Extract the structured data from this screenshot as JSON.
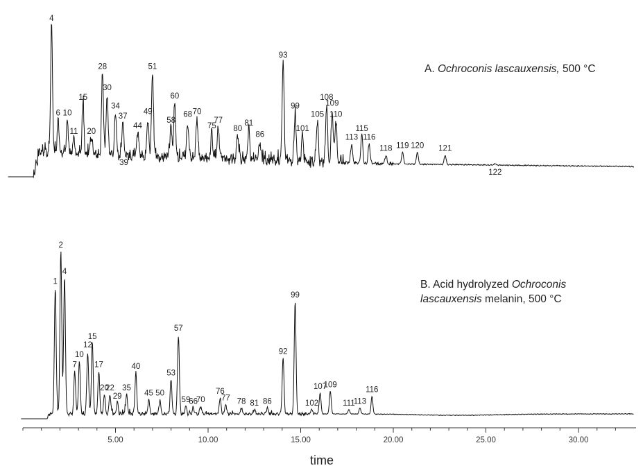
{
  "chart_data": [
    {
      "type": "line",
      "title": {
        "prefix": "A. ",
        "italic": "Ochroconis lascauxensis,",
        "suffix": " 500 °C"
      },
      "xlabel": "time",
      "xlim": [
        0,
        32.5
      ],
      "series": [
        {
          "peaks": [
            {
              "label": "4",
              "x": 1.55,
              "y": 100
            },
            {
              "label": "6",
              "x": 1.9,
              "y": 33
            },
            {
              "label": "10",
              "x": 2.4,
              "y": 33
            },
            {
              "label": "11",
              "x": 2.75,
              "y": 20
            },
            {
              "label": "15",
              "x": 3.25,
              "y": 44
            },
            {
              "label": "20",
              "x": 3.7,
              "y": 20
            },
            {
              "label": "28",
              "x": 4.3,
              "y": 66
            },
            {
              "label": "30",
              "x": 4.55,
              "y": 51
            },
            {
              "label": "34",
              "x": 5.0,
              "y": 38
            },
            {
              "label": "37",
              "x": 5.4,
              "y": 31
            },
            {
              "label": "39",
              "x": 5.45,
              "y": 4
            },
            {
              "label": "44",
              "x": 6.2,
              "y": 24
            },
            {
              "label": "49",
              "x": 6.75,
              "y": 34
            },
            {
              "label": "51",
              "x": 7.0,
              "y": 66
            },
            {
              "label": "58",
              "x": 8.0,
              "y": 28
            },
            {
              "label": "60",
              "x": 8.2,
              "y": 45
            },
            {
              "label": "68",
              "x": 8.9,
              "y": 32
            },
            {
              "label": "70",
              "x": 9.4,
              "y": 34
            },
            {
              "label": "75",
              "x": 10.2,
              "y": 24
            },
            {
              "label": "77",
              "x": 10.55,
              "y": 28
            },
            {
              "label": "80",
              "x": 11.6,
              "y": 22
            },
            {
              "label": "81",
              "x": 12.2,
              "y": 26
            },
            {
              "label": "86",
              "x": 12.8,
              "y": 18
            },
            {
              "label": "93",
              "x": 14.05,
              "y": 74
            },
            {
              "label": "99",
              "x": 14.7,
              "y": 38
            },
            {
              "label": "101",
              "x": 15.1,
              "y": 22
            },
            {
              "label": "105",
              "x": 15.9,
              "y": 32
            },
            {
              "label": "108",
              "x": 16.4,
              "y": 44
            },
            {
              "label": "109",
              "x": 16.7,
              "y": 40
            },
            {
              "label": "110",
              "x": 16.9,
              "y": 32
            },
            {
              "label": "113",
              "x": 17.75,
              "y": 16
            },
            {
              "label": "115",
              "x": 18.3,
              "y": 22
            },
            {
              "label": "116",
              "x": 18.7,
              "y": 16
            },
            {
              "label": "118",
              "x": 19.6,
              "y": 8
            },
            {
              "label": "119",
              "x": 20.5,
              "y": 10
            },
            {
              "label": "120",
              "x": 21.3,
              "y": 10
            },
            {
              "label": "121",
              "x": 22.8,
              "y": 8
            },
            {
              "label": "122",
              "x": 25.5,
              "y": 2
            }
          ]
        }
      ]
    },
    {
      "type": "line",
      "title": {
        "line1_prefix": "B. Acid hydrolyzed ",
        "line1_italic": "Ochroconis",
        "line2_italic": "lascauxensis",
        "line2_suffix": " melanin, 500 °C"
      },
      "xlabel": "time",
      "xlim": [
        0,
        32.5
      ],
      "x_ticks": [
        5,
        10,
        15,
        20,
        25,
        30
      ],
      "x_tick_labels": [
        "5.00",
        "10.00",
        "15.00",
        "20.00",
        "25.00",
        "30.00"
      ],
      "series": [
        {
          "peaks": [
            {
              "label": "1",
              "x": 1.75,
              "y": 76
            },
            {
              "label": "2",
              "x": 2.05,
              "y": 98
            },
            {
              "label": "4",
              "x": 2.25,
              "y": 82
            },
            {
              "label": "7",
              "x": 2.8,
              "y": 26
            },
            {
              "label": "10",
              "x": 3.05,
              "y": 32
            },
            {
              "label": "12",
              "x": 3.5,
              "y": 38
            },
            {
              "label": "15",
              "x": 3.75,
              "y": 43
            },
            {
              "label": "17",
              "x": 4.1,
              "y": 26
            },
            {
              "label": "20",
              "x": 4.4,
              "y": 12
            },
            {
              "label": "22",
              "x": 4.7,
              "y": 12
            },
            {
              "label": "29",
              "x": 5.1,
              "y": 7
            },
            {
              "label": "35",
              "x": 5.6,
              "y": 12
            },
            {
              "label": "40",
              "x": 6.1,
              "y": 25
            },
            {
              "label": "45",
              "x": 6.8,
              "y": 9
            },
            {
              "label": "50",
              "x": 7.4,
              "y": 9
            },
            {
              "label": "53",
              "x": 8.0,
              "y": 21
            },
            {
              "label": "57",
              "x": 8.4,
              "y": 48
            },
            {
              "label": "59",
              "x": 8.8,
              "y": 5
            },
            {
              "label": "66",
              "x": 9.2,
              "y": 4
            },
            {
              "label": "70",
              "x": 9.6,
              "y": 5
            },
            {
              "label": "76",
              "x": 10.65,
              "y": 10
            },
            {
              "label": "77",
              "x": 10.95,
              "y": 6
            },
            {
              "label": "78",
              "x": 11.8,
              "y": 4
            },
            {
              "label": "81",
              "x": 12.5,
              "y": 3
            },
            {
              "label": "86",
              "x": 13.2,
              "y": 4
            },
            {
              "label": "92",
              "x": 14.05,
              "y": 34
            },
            {
              "label": "99",
              "x": 14.7,
              "y": 68
            },
            {
              "label": "102",
              "x": 15.6,
              "y": 3
            },
            {
              "label": "107",
              "x": 16.05,
              "y": 13
            },
            {
              "label": "109",
              "x": 16.6,
              "y": 14
            },
            {
              "label": "111",
              "x": 17.6,
              "y": 3
            },
            {
              "label": "113",
              "x": 18.2,
              "y": 4
            },
            {
              "label": "116",
              "x": 18.85,
              "y": 11
            }
          ]
        }
      ]
    }
  ]
}
